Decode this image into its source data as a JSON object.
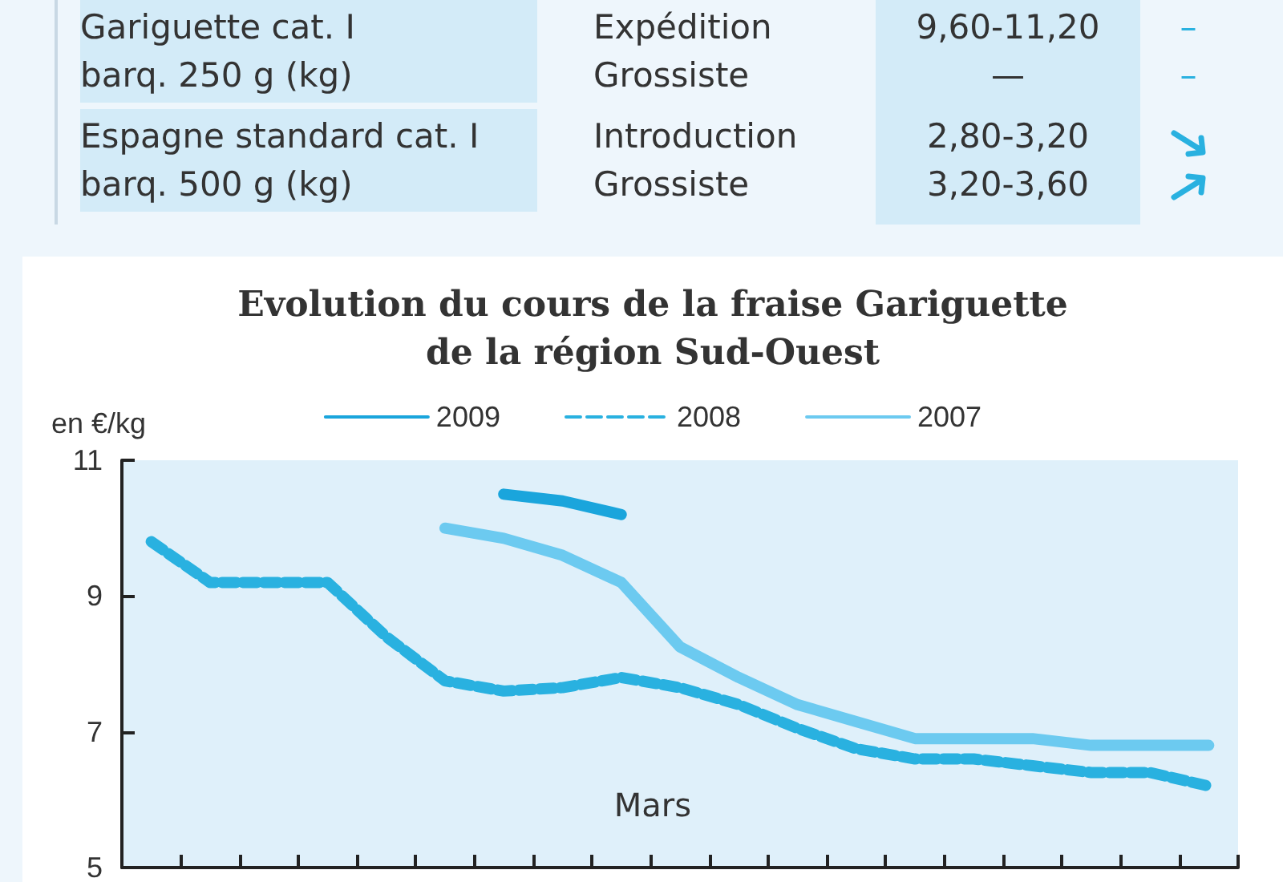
{
  "chart_data": {
    "type": "line",
    "title": "Evolution du cours de la fraise Gariguette\nde la région Sud-Ouest",
    "ylabel": "en €/kg",
    "categories": [
      null,
      null,
      null,
      null,
      null,
      null,
      null,
      null,
      null,
      null,
      null,
      null,
      null,
      null,
      null,
      null,
      null,
      null,
      null
    ],
    "series": [
      {
        "name": "2009",
        "color": "#1aa5dc",
        "line_style": "solid",
        "values": [
          null,
          null,
          null,
          null,
          null,
          null,
          10.5,
          10.4,
          10.2,
          null,
          null,
          null,
          null,
          null,
          null,
          null,
          null,
          null,
          null
        ]
      },
      {
        "name": "2008",
        "color": "#29b1e0",
        "line_style": "dashed",
        "values": [
          9.8,
          9.2,
          9.2,
          9.2,
          8.4,
          7.75,
          7.6,
          7.65,
          7.8,
          7.65,
          7.4,
          7.05,
          6.75,
          6.6,
          6.6,
          6.5,
          6.4,
          6.4,
          6.2
        ]
      },
      {
        "name": "2007",
        "color": "#6ccaf0",
        "line_style": "solid",
        "values": [
          null,
          null,
          null,
          null,
          null,
          10.0,
          9.85,
          9.6,
          9.2,
          8.25,
          7.8,
          7.4,
          7.15,
          6.9,
          6.9,
          6.9,
          6.8,
          6.8,
          6.8
        ]
      }
    ],
    "ylim": [
      5,
      11
    ],
    "yticks": [
      5,
      7,
      9,
      11
    ],
    "grid": false,
    "legend": "top",
    "marker": "none",
    "annotations": [
      "Gariguette cat. I",
      "Expédition",
      "9,60-11,20",
      "–",
      "barq. 250 g (kg)",
      "Grossiste",
      "—",
      "–",
      "Espagne standard cat. I",
      "Introduction",
      "2,80-3,20",
      "barq. 500 g (kg)",
      "Grossiste",
      "3,20-3,60",
      "Mars"
    ]
  }
}
